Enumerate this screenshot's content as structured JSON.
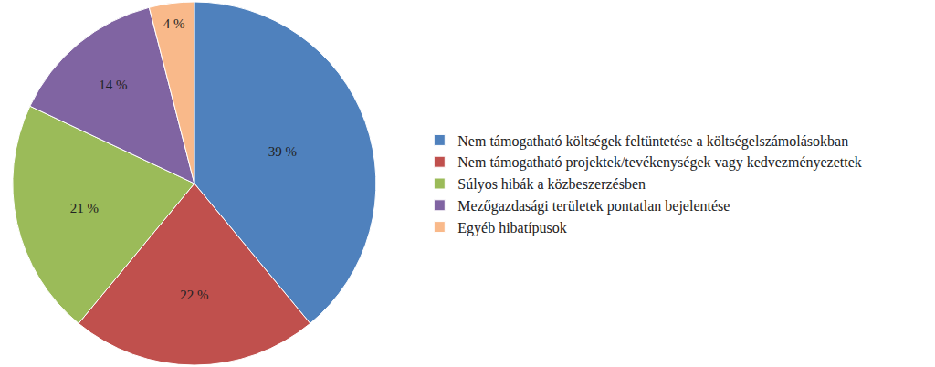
{
  "chart_data": {
    "type": "pie",
    "categories": [
      "Nem támogatható költségek feltüntetése a költségelszámolásokban",
      "Nem támogatható projektek/tevékenységek vagy kedvezményezettek",
      "Súlyos hibák a közbeszerzésben",
      "Mezőgazdasági területek pontatlan bejelentése",
      "Egyéb hibatípusok"
    ],
    "values": [
      39,
      22,
      21,
      14,
      4
    ],
    "value_labels": [
      "39 %",
      "22 %",
      "21 %",
      "14 %",
      "4 %"
    ],
    "colors": [
      "#4f81bd",
      "#c0504d",
      "#9bbb59",
      "#8064a2",
      "#f9b98a"
    ],
    "data_labels": true,
    "legend": "right"
  }
}
